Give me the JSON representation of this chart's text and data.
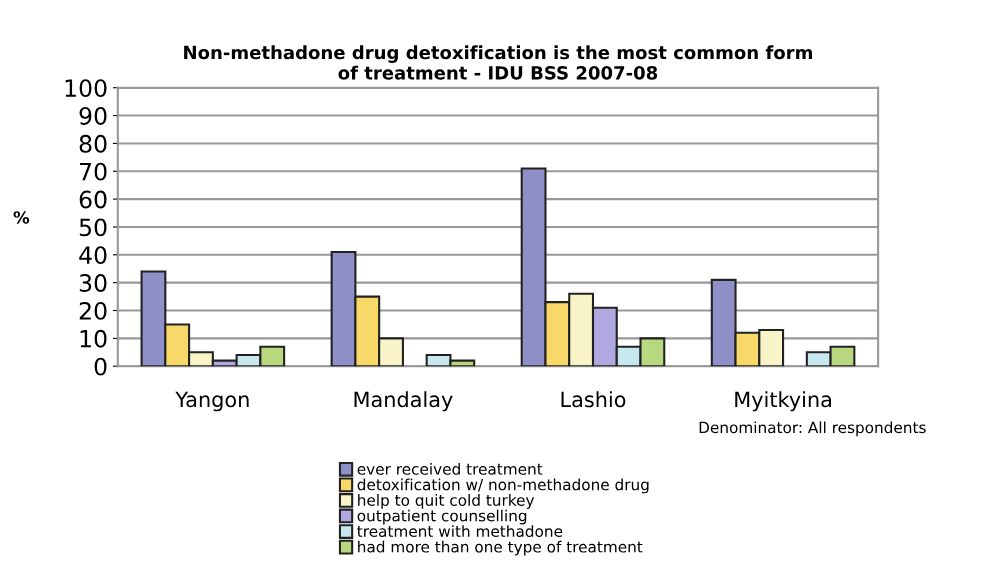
{
  "chart_data": {
    "type": "bar",
    "title": "Non-methadone drug detoxification is the most common form\nof treatment - IDU BSS 2007-08",
    "ylabel": "%",
    "categories": [
      "Yangon",
      "Mandalay",
      "Lashio",
      "Myitkyina"
    ],
    "series": [
      {
        "name": "ever received treatment",
        "color": "#9090c8",
        "values": [
          34,
          41,
          71,
          31
        ]
      },
      {
        "name": "detoxification w/ non-methadone drug",
        "color": "#f8d868",
        "values": [
          15,
          25,
          23,
          12
        ]
      },
      {
        "name": "help to quit cold turkey",
        "color": "#f8f4c8",
        "values": [
          5,
          10,
          26,
          13
        ]
      },
      {
        "name": "outpatient counselling",
        "color": "#b0a8e0",
        "values": [
          2,
          0,
          21,
          0
        ]
      },
      {
        "name": "treatment with methadone",
        "color": "#c8e8f0",
        "values": [
          4,
          4,
          7,
          5
        ]
      },
      {
        "name": "had more than one type of treatment",
        "color": "#b8d880",
        "values": [
          7,
          2,
          10,
          7
        ]
      }
    ],
    "ylim": [
      0,
      100
    ],
    "yticks": [
      0,
      10,
      20,
      30,
      40,
      50,
      60,
      70,
      80,
      90,
      100
    ],
    "grid": "y",
    "legend": "bottom",
    "annotations": [
      "Denominator: All respondents"
    ]
  }
}
